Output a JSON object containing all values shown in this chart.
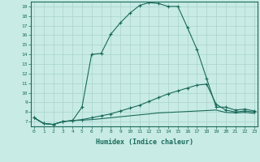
{
  "xlabel": "Humidex (Indice chaleur)",
  "bg_color": "#c8ebe5",
  "grid_color": "#a8d4cc",
  "line_color": "#1a6b5a",
  "xmin": 0,
  "xmax": 23,
  "ymin": 7,
  "ymax": 19,
  "line1_x": [
    0,
    1,
    2,
    3,
    4,
    5,
    6,
    7,
    8,
    9,
    10,
    11,
    12,
    13,
    14,
    15,
    16,
    17,
    18,
    19,
    20,
    21,
    22,
    23
  ],
  "line1_y": [
    7.4,
    6.8,
    6.7,
    7.0,
    7.1,
    8.5,
    14.0,
    14.1,
    16.1,
    17.3,
    18.3,
    19.1,
    19.4,
    19.3,
    19.0,
    19.0,
    16.8,
    14.5,
    11.5,
    8.5,
    8.5,
    8.2,
    8.3,
    8.1
  ],
  "line2_x": [
    0,
    1,
    2,
    3,
    4,
    5,
    6,
    7,
    8,
    9,
    10,
    11,
    12,
    13,
    14,
    15,
    16,
    17,
    18,
    19,
    20,
    21,
    22,
    23
  ],
  "line2_y": [
    7.4,
    6.8,
    6.7,
    7.0,
    7.1,
    7.2,
    7.4,
    7.6,
    7.8,
    8.1,
    8.4,
    8.7,
    9.1,
    9.5,
    9.9,
    10.2,
    10.5,
    10.8,
    10.9,
    8.8,
    8.2,
    8.0,
    8.1,
    8.0
  ],
  "line3_x": [
    0,
    1,
    2,
    3,
    4,
    5,
    6,
    7,
    8,
    9,
    10,
    11,
    12,
    13,
    14,
    15,
    16,
    17,
    18,
    19,
    20,
    21,
    22,
    23
  ],
  "line3_y": [
    7.4,
    6.8,
    6.7,
    7.0,
    7.1,
    7.15,
    7.2,
    7.3,
    7.4,
    7.5,
    7.6,
    7.7,
    7.8,
    7.9,
    7.95,
    8.0,
    8.05,
    8.1,
    8.15,
    8.2,
    7.95,
    7.9,
    7.95,
    7.85
  ]
}
